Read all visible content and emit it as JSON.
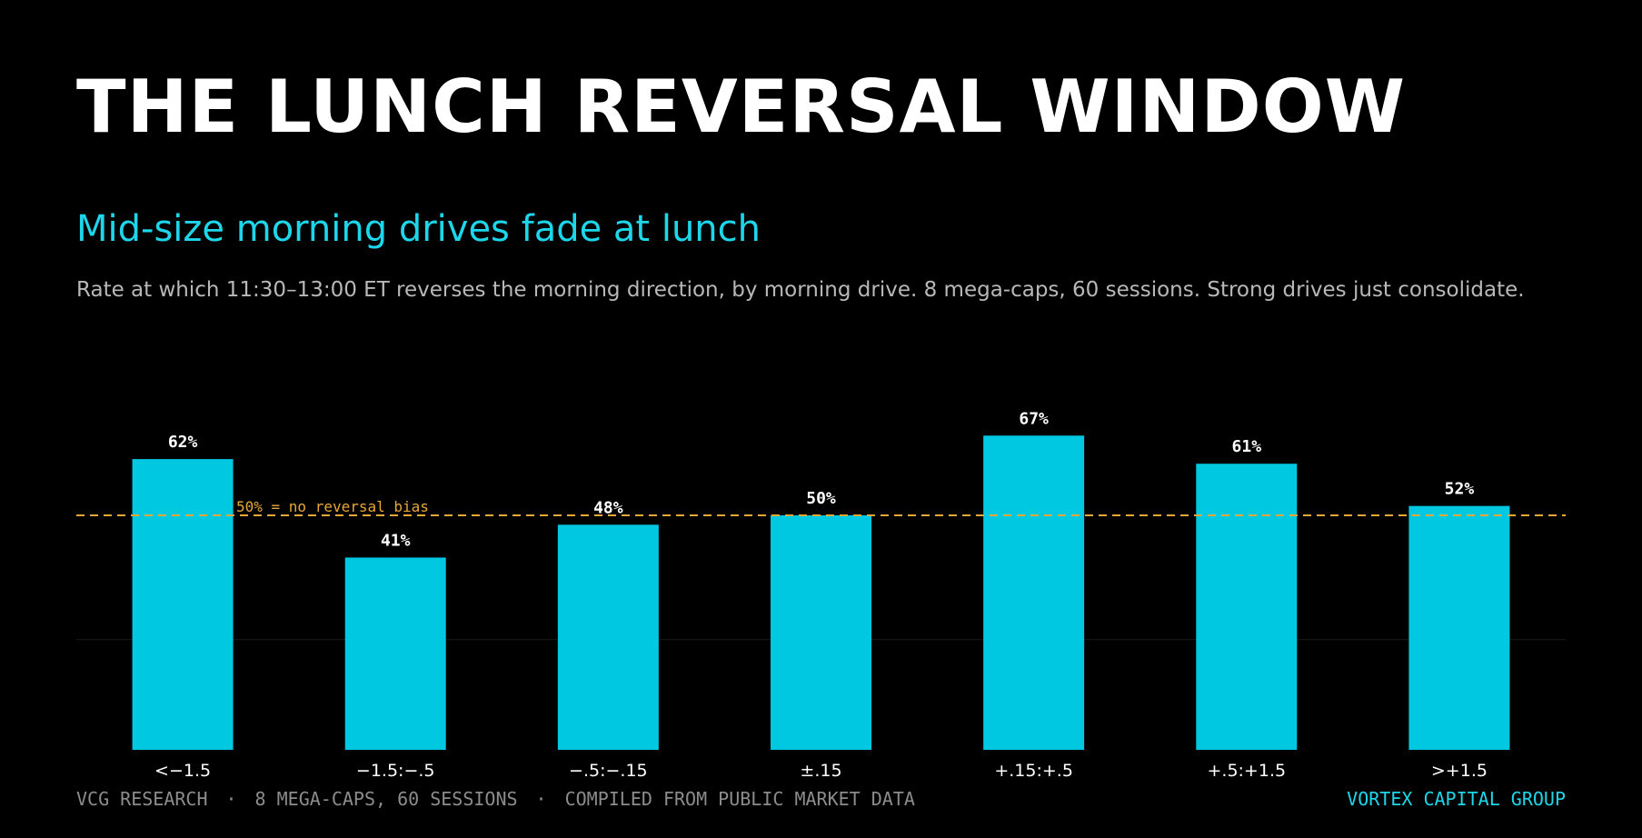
{
  "header": {
    "title": "THE LUNCH REVERSAL WINDOW",
    "subtitle": "Mid-size morning drives fade at lunch",
    "description": "Rate at which 11:30–13:00 ET reverses the morning direction, by morning drive. 8 mega-caps, 60 sessions. Strong drives just consolidate."
  },
  "colors": {
    "background": "#000000",
    "bar": "#00c8e0",
    "accent": "#1ed6ea",
    "reference_line": "#e8a838",
    "text": "#ffffff",
    "muted": "#8c8c8c"
  },
  "chart_data": {
    "type": "bar",
    "categories": [
      "<−1.5",
      "−1.5:−.5",
      "−.5:−.15",
      "±.15",
      "+.15:+.5",
      "+.5:+1.5",
      ">+1.5"
    ],
    "values": [
      62,
      41,
      48,
      50,
      67,
      61,
      52
    ],
    "value_labels": [
      "62%",
      "41%",
      "48%",
      "50%",
      "67%",
      "61%",
      "52%"
    ],
    "ylim": [
      0,
      100
    ],
    "grid": true,
    "reference_line": {
      "value": 50,
      "label": "50% = no reversal bias"
    }
  },
  "footer": {
    "left_items": [
      "VCG RESEARCH",
      "8 MEGA-CAPS, 60 SESSIONS",
      "COMPILED FROM PUBLIC MARKET DATA"
    ],
    "separator": "·",
    "brand": "VORTEX CAPITAL GROUP"
  }
}
